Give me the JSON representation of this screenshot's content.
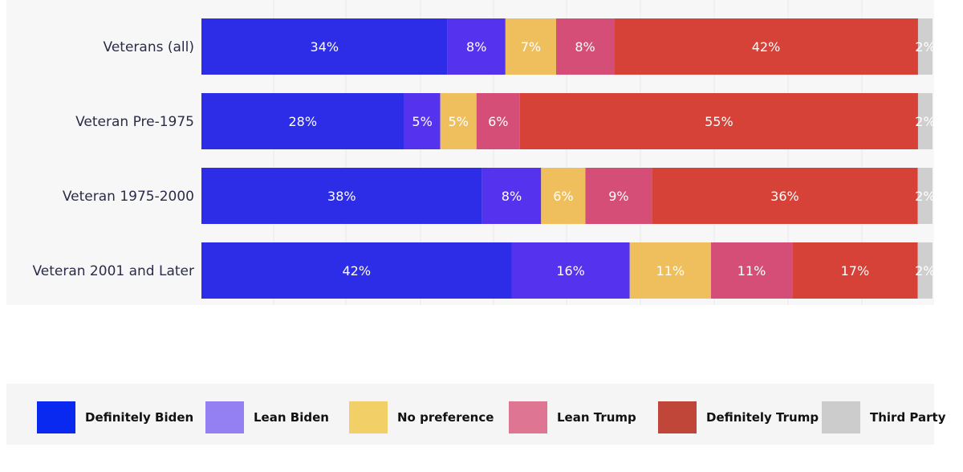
{
  "chart_data": {
    "type": "bar",
    "orientation": "horizontal",
    "stacked": true,
    "categories": [
      "Veterans (all)",
      "Veteran Pre-1975",
      "Veteran 1975-2000",
      "Veteran 2001 and Later"
    ],
    "series": [
      {
        "name": "Definitely Biden",
        "color": "#2d2de8",
        "legend_color": "#0a29f0",
        "values": [
          34,
          28,
          38,
          42
        ],
        "labels": [
          "34%",
          "28%",
          "38%",
          "42%"
        ]
      },
      {
        "name": "Lean Biden",
        "color": "#5533ee",
        "legend_color": "#9480f2",
        "values": [
          8,
          5,
          8,
          16
        ],
        "labels": [
          "8%",
          "5%",
          "8%",
          "16%"
        ]
      },
      {
        "name": "No preference",
        "color": "#efbf5e",
        "legend_color": "#f3d067",
        "values": [
          7,
          5,
          6,
          11
        ],
        "labels": [
          "7%",
          "5%",
          "6%",
          "11%"
        ]
      },
      {
        "name": "Lean Trump",
        "color": "#d54e78",
        "legend_color": "#de7592",
        "values": [
          8,
          6,
          9,
          11
        ],
        "labels": [
          "8%",
          "6%",
          "9%",
          "11%"
        ]
      },
      {
        "name": "Definitely Trump",
        "color": "#d64238",
        "legend_color": "#c0463a",
        "values": [
          42,
          55,
          36,
          17
        ],
        "labels": [
          "42%",
          "55%",
          "36%",
          "17%"
        ]
      },
      {
        "name": "Third Party",
        "color": "#cfcfcf",
        "legend_color": "#cccccc",
        "values": [
          2,
          2,
          2,
          2
        ],
        "labels": [
          "2%",
          "2%",
          "2%",
          "2%"
        ]
      }
    ],
    "xlim": [
      0,
      100
    ],
    "grid": "vertical",
    "legend_position": "bottom"
  }
}
